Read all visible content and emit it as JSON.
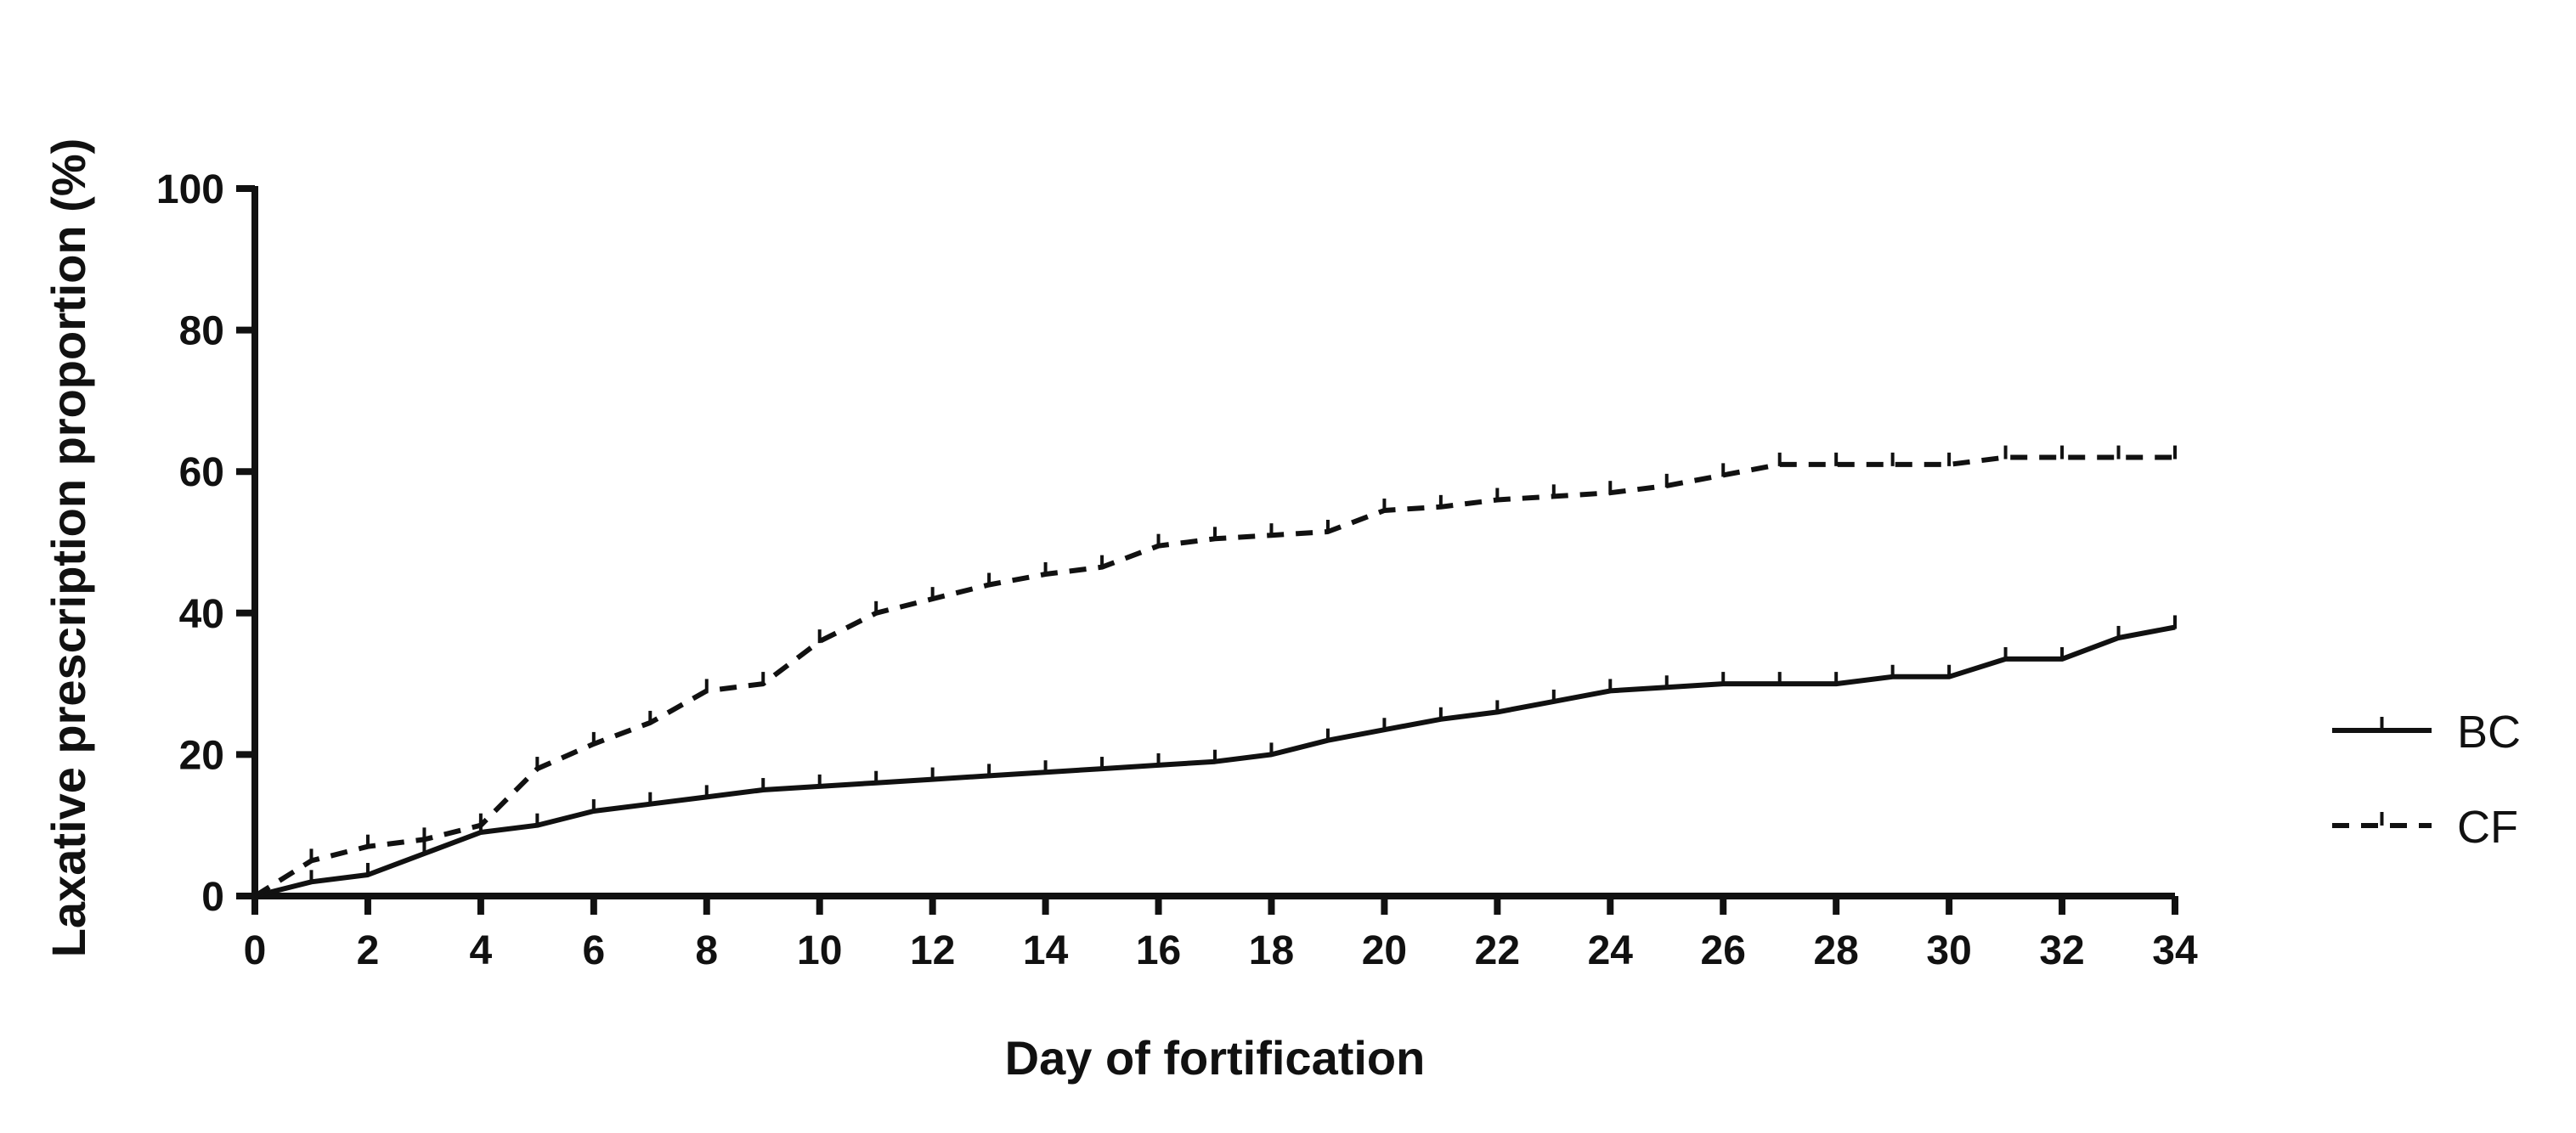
{
  "chart_data": {
    "type": "line",
    "title": "",
    "xlabel": "Day of fortification",
    "ylabel": "Laxative prescription proportion (%)",
    "xlim": [
      0,
      34
    ],
    "ylim": [
      0,
      100
    ],
    "x_ticks": [
      0,
      2,
      4,
      6,
      8,
      10,
      12,
      14,
      16,
      18,
      20,
      22,
      24,
      26,
      28,
      30,
      32,
      34
    ],
    "y_ticks": [
      0,
      20,
      40,
      60,
      80,
      100
    ],
    "grid": false,
    "legend_position": "right",
    "series": [
      {
        "name": "BC",
        "line_style": "solid",
        "color": "#111111",
        "x": [
          0,
          1,
          2,
          3,
          4,
          5,
          6,
          7,
          8,
          9,
          10,
          11,
          12,
          13,
          14,
          15,
          16,
          17,
          18,
          19,
          20,
          21,
          22,
          23,
          24,
          25,
          26,
          27,
          28,
          29,
          30,
          31,
          32,
          33,
          34
        ],
        "values": [
          0,
          2,
          3,
          6,
          9,
          10,
          12,
          13,
          14,
          15,
          15.5,
          16,
          16.5,
          17,
          17.5,
          18,
          18.5,
          19,
          20,
          22,
          23.5,
          25,
          26,
          27.5,
          29,
          29.5,
          30,
          30,
          30,
          31,
          31,
          33.5,
          33.5,
          36.5,
          38
        ]
      },
      {
        "name": "CF",
        "line_style": "dashed",
        "color": "#111111",
        "x": [
          0,
          1,
          2,
          3,
          4,
          5,
          6,
          7,
          8,
          9,
          10,
          11,
          12,
          13,
          14,
          15,
          16,
          17,
          18,
          19,
          20,
          21,
          22,
          23,
          24,
          25,
          26,
          27,
          28,
          29,
          30,
          31,
          32,
          33,
          34
        ],
        "values": [
          0,
          5,
          7,
          8,
          10,
          18,
          21.5,
          24.5,
          29,
          30,
          36,
          40,
          42,
          44,
          45.5,
          46.5,
          49.5,
          50.5,
          51,
          51.5,
          54.5,
          55,
          56,
          56.5,
          57,
          58,
          59.5,
          61,
          61,
          61,
          61,
          62,
          62,
          62,
          62
        ]
      }
    ]
  }
}
